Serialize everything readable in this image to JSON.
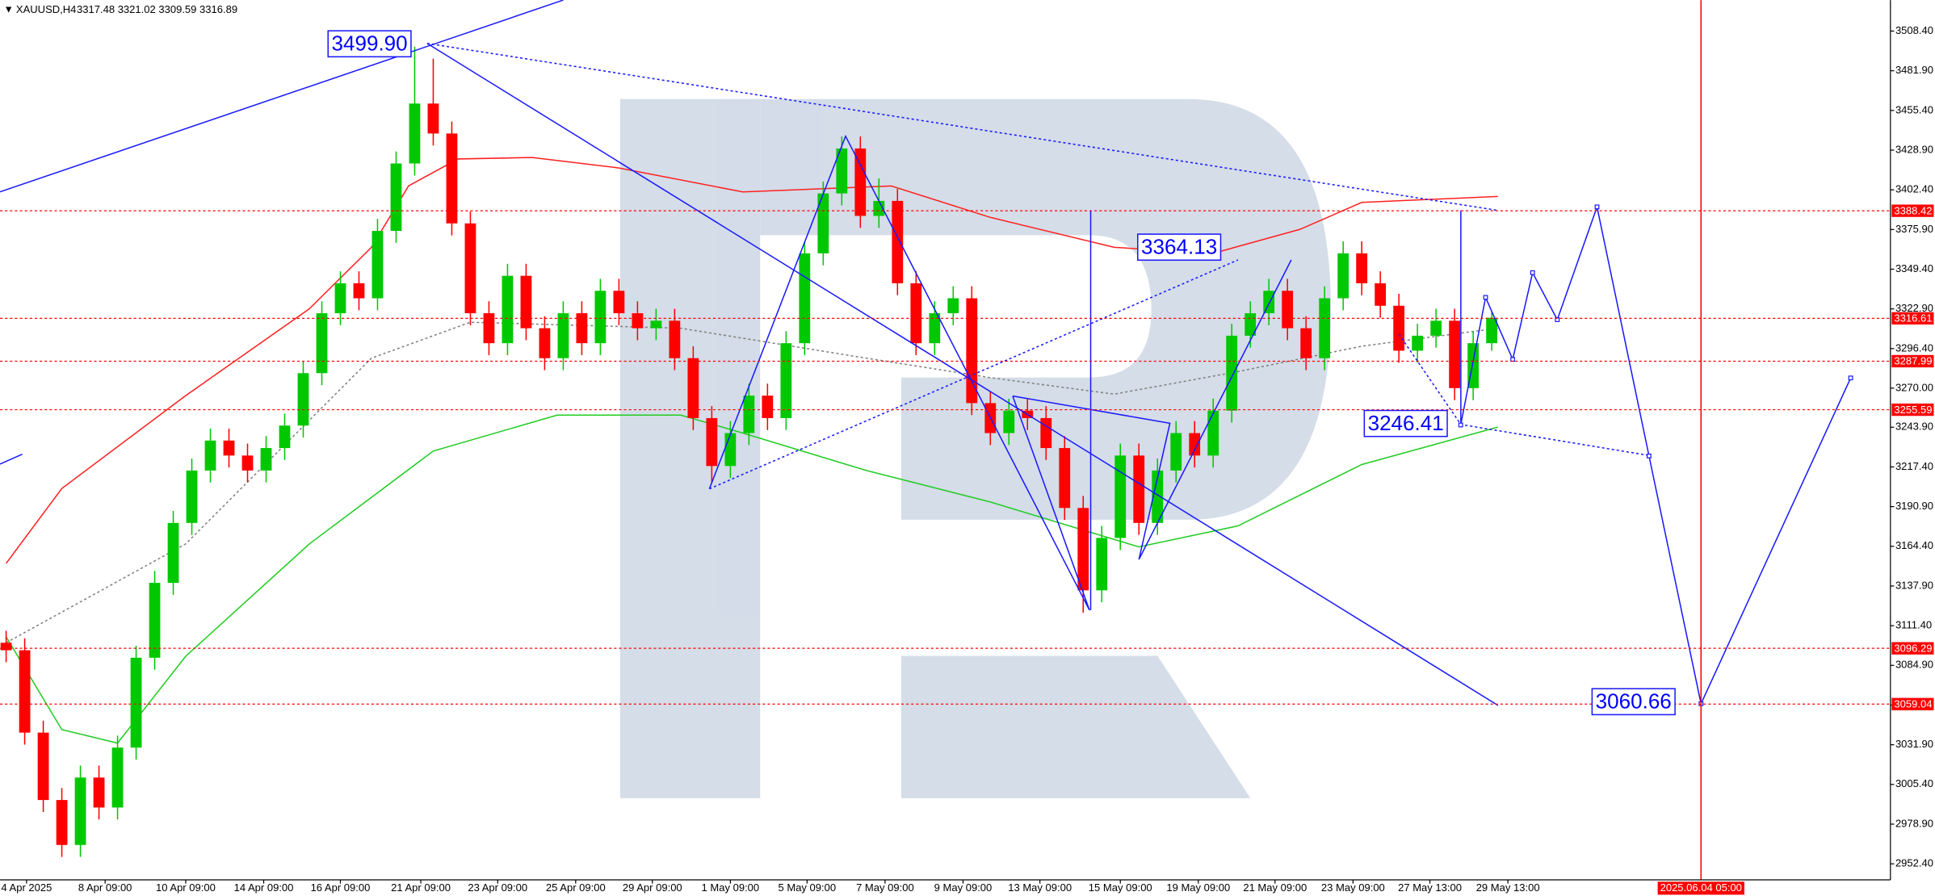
{
  "symbol": "XAUUSD,H4",
  "quote": "3317.48 3321.02 3309.59 3316.89",
  "chart_data": {
    "type": "candlestick",
    "up_color": "#00c800",
    "down_color": "#ff0000",
    "open": [
      3100,
      3095,
      3040,
      2995,
      2965,
      3010,
      2990,
      3030,
      3090,
      3140,
      3180,
      3215,
      3235,
      3225,
      3215,
      3230,
      3245,
      3280,
      3320,
      3340,
      3330,
      3375,
      3420,
      3460,
      3440,
      3380,
      3320,
      3300,
      3345,
      3310,
      3290,
      3320,
      3300,
      3335,
      3320,
      3310,
      3315,
      3290,
      3250,
      3218,
      3240,
      3265,
      3250,
      3300,
      3360,
      3400,
      3430,
      3385,
      3395,
      3340,
      3300,
      3320,
      3330,
      3260,
      3240,
      3255,
      3250,
      3230,
      3190,
      3135,
      3170,
      3225,
      3180,
      3215,
      3240,
      3225,
      3255,
      3305,
      3320,
      3335,
      3310,
      3290,
      3330,
      3360,
      3340,
      3325,
      3295,
      3305,
      3315,
      3270,
      3300
    ],
    "high": [
      3108,
      3103,
      3048,
      3003,
      3018,
      3018,
      3038,
      3098,
      3148,
      3188,
      3223,
      3243,
      3243,
      3233,
      3238,
      3253,
      3288,
      3328,
      3348,
      3348,
      3383,
      3428,
      3498,
      3490,
      3448,
      3388,
      3328,
      3353,
      3353,
      3318,
      3328,
      3328,
      3343,
      3343,
      3328,
      3323,
      3323,
      3298,
      3258,
      3248,
      3273,
      3273,
      3308,
      3368,
      3408,
      3438,
      3438,
      3410,
      3403,
      3348,
      3328,
      3338,
      3338,
      3268,
      3263,
      3263,
      3258,
      3238,
      3198,
      3178,
      3233,
      3233,
      3223,
      3248,
      3248,
      3263,
      3313,
      3328,
      3343,
      3343,
      3318,
      3338,
      3368,
      3368,
      3348,
      3333,
      3313,
      3323,
      3323,
      3308,
      3321
    ],
    "low": [
      3087,
      3032,
      2987,
      2957,
      2957,
      2982,
      2982,
      3022,
      3082,
      3132,
      3172,
      3207,
      3217,
      3207,
      3207,
      3222,
      3237,
      3272,
      3312,
      3322,
      3322,
      3367,
      3412,
      3432,
      3372,
      3312,
      3292,
      3292,
      3302,
      3282,
      3282,
      3292,
      3292,
      3312,
      3302,
      3302,
      3282,
      3242,
      3207,
      3210,
      3232,
      3242,
      3242,
      3292,
      3352,
      3392,
      3377,
      3377,
      3332,
      3292,
      3292,
      3312,
      3252,
      3232,
      3232,
      3242,
      3222,
      3182,
      3120,
      3127,
      3162,
      3172,
      3172,
      3207,
      3217,
      3217,
      3247,
      3297,
      3312,
      3302,
      3282,
      3282,
      3322,
      3332,
      3317,
      3287,
      3287,
      3297,
      3262,
      3262,
      3295
    ],
    "close": [
      3095,
      3040,
      2995,
      2965,
      3010,
      2990,
      3030,
      3090,
      3140,
      3180,
      3215,
      3235,
      3225,
      3215,
      3230,
      3245,
      3280,
      3320,
      3340,
      3330,
      3375,
      3420,
      3460,
      3440,
      3380,
      3320,
      3300,
      3345,
      3310,
      3290,
      3320,
      3300,
      3335,
      3320,
      3310,
      3315,
      3290,
      3250,
      3218,
      3240,
      3265,
      3250,
      3300,
      3360,
      3400,
      3430,
      3385,
      3395,
      3340,
      3300,
      3320,
      3330,
      3260,
      3240,
      3255,
      3250,
      3230,
      3190,
      3135,
      3170,
      3225,
      3180,
      3215,
      3240,
      3225,
      3255,
      3305,
      3320,
      3335,
      3310,
      3290,
      3330,
      3360,
      3340,
      3325,
      3295,
      3305,
      3315,
      3270,
      3300,
      3317
    ],
    "moving_averages": [
      {
        "color": "#ff2020",
        "dashed": false,
        "x": [
          0,
          3,
          9.67,
          16.33,
          19.67,
          21.67,
          24.33,
          28.33,
          33,
          39.67,
          47.67,
          53,
          59.67,
          65,
          69.67,
          73,
          80.33
        ],
        "values": [
          3153,
          3203,
          3265,
          3323,
          3364,
          3405,
          3423,
          3424,
          3417,
          3401,
          3405,
          3384,
          3364,
          3360,
          3376,
          3394,
          3398
        ]
      },
      {
        "color": "#22cc22",
        "dashed": false,
        "x": [
          0,
          3,
          6,
          9.67,
          16.33,
          23,
          29.67,
          36.33,
          39.67,
          46.33,
          53,
          58.33,
          61,
          66.33,
          73,
          80.33
        ],
        "values": [
          3104,
          3042,
          3033,
          3091,
          3166,
          3228,
          3252,
          3252,
          3240,
          3215,
          3194,
          3174,
          3164,
          3178,
          3219,
          3244
        ]
      },
      {
        "color": "#808080",
        "dashed": true,
        "x": [
          0,
          9.67,
          19.67,
          25,
          36.33,
          46.33,
          53,
          59.67,
          66.33,
          73,
          80.33
        ],
        "values": [
          3100,
          3166,
          3290,
          3314,
          3310,
          3290,
          3277,
          3266,
          3281,
          3298,
          3310
        ]
      }
    ],
    "forecast": {
      "color": "#1a1aff",
      "x": [
        78.33,
        79.67,
        81.13,
        82.2,
        83.53,
        85.67,
        88.47,
        91.27,
        99.33
      ],
      "values": [
        3245.4,
        3330.6,
        3289.2,
        3347.1,
        3315.7,
        3391,
        3224.7,
        3059.3,
        3276.8
      ]
    },
    "levels": [
      3388.42,
      3316.61,
      3287.99,
      3255.59,
      3096.29,
      3059.04
    ],
    "level_color": "#ff0000",
    "annotations": [
      {
        "value": 3499.9,
        "label": "3499.90"
      },
      3364.13,
      3246.41,
      3060.66
    ],
    "cursor": {
      "x": 91.27,
      "label": "2025.06.04 05:00"
    },
    "xlim": [
      -0.33,
      101.47
    ],
    "ylim": [
      2941.7,
      3529.1
    ],
    "yticks": [
      {
        "value": 3508.4,
        "label": "3508.40"
      },
      {
        "value": 3481.9,
        "label": "3481.90"
      },
      {
        "value": 3455.4,
        "label": "3455.40"
      },
      {
        "value": 3428.9,
        "label": "3428.90"
      },
      {
        "value": 3402.4,
        "label": "3402.40"
      },
      {
        "value": 3375.9,
        "label": "3375.90"
      },
      {
        "value": 3349.4,
        "label": "3349.40"
      },
      {
        "value": 3322.9,
        "label": "3322.90"
      },
      {
        "value": 3296.4,
        "label": "3296.40"
      },
      {
        "value": 3270,
        "label": "3270.00"
      },
      {
        "value": 3243.9,
        "label": "3243.90"
      },
      {
        "value": 3217.4,
        "label": "3217.40"
      },
      {
        "value": 3190.9,
        "label": "3190.90"
      },
      {
        "value": 3164.4,
        "label": "3164.40"
      },
      {
        "value": 3137.9,
        "label": "3137.90"
      },
      {
        "value": 3111.4,
        "label": "3111.40"
      },
      {
        "value": 3084.9,
        "label": "3084.90"
      },
      {
        "value": 3058.4,
        "label": "3058.40"
      },
      {
        "value": 3031.9,
        "label": "3031.90"
      },
      {
        "value": 3005.4,
        "label": "3005.40"
      },
      {
        "value": 2978.9,
        "label": "2978.90"
      },
      {
        "value": 2952.4,
        "label": "2952.40"
      }
    ],
    "xticks": [
      {
        "value": 1.1,
        "label": "4 Apr 2025"
      },
      {
        "value": 5.33,
        "label": "8 Apr 09:00"
      },
      {
        "value": 9.67,
        "label": "10 Apr 09:00"
      },
      {
        "value": 13.87,
        "label": "14 Apr 09:00"
      },
      {
        "value": 18,
        "label": "16 Apr 09:00"
      },
      {
        "value": 22.33,
        "label": "21 Apr 09:00"
      },
      {
        "value": 26.47,
        "label": "23 Apr 09:00"
      },
      {
        "value": 30.67,
        "label": "25 Apr 09:00"
      },
      {
        "value": 34.8,
        "label": "29 Apr 09:00"
      },
      {
        "value": 39,
        "label": "1 May 09:00"
      },
      {
        "value": 43.13,
        "label": "5 May 09:00"
      },
      {
        "value": 47.33,
        "label": "7 May 09:00"
      },
      {
        "value": 51.53,
        "label": "9 May 09:00"
      },
      {
        "value": 55.67,
        "label": "13 May 09:00"
      },
      {
        "value": 60,
        "label": "15 May 09:00"
      },
      {
        "value": 64.2,
        "label": "19 May 09:00"
      },
      {
        "value": 68.33,
        "label": "21 May 09:00"
      },
      {
        "value": 72.53,
        "label": "23 May 09:00"
      },
      {
        "value": 76.67,
        "label": "27 May 13:00"
      },
      {
        "value": 80.87,
        "label": "29 May 13:00"
      }
    ]
  }
}
